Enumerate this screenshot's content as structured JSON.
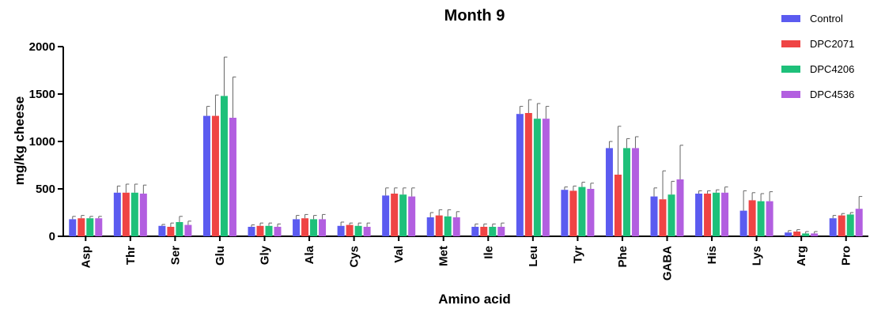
{
  "chart_data": {
    "type": "bar",
    "title": "Month 9",
    "xlabel": "Amino acid",
    "ylabel": "mg/kg cheese",
    "ylim": [
      0,
      2000
    ],
    "yticks": [
      "0",
      "500",
      "1000",
      "1500",
      "2000"
    ],
    "grid": false,
    "legend_position": "top-right",
    "error_bars": true,
    "categories": [
      "Asp",
      "Thr",
      "Ser",
      "Glu",
      "Gly",
      "Ala",
      "Cys",
      "Val",
      "Met",
      "Ile",
      "Leu",
      "Tyr",
      "Phe",
      "GABA",
      "His",
      "Lys",
      "Arg",
      "Pro"
    ],
    "series": [
      {
        "name": "Control",
        "color": "#5b5bf0",
        "values": [
          180,
          460,
          110,
          1270,
          100,
          180,
          110,
          430,
          200,
          100,
          1290,
          490,
          930,
          420,
          450,
          270,
          40,
          190
        ],
        "errors": [
          30,
          70,
          15,
          100,
          20,
          40,
          40,
          80,
          50,
          30,
          80,
          30,
          70,
          90,
          30,
          210,
          20,
          30
        ]
      },
      {
        "name": "DPC2071",
        "color": "#ef4444",
        "values": [
          190,
          460,
          100,
          1270,
          110,
          190,
          120,
          450,
          220,
          100,
          1300,
          480,
          650,
          390,
          450,
          380,
          50,
          220
        ],
        "errors": [
          30,
          90,
          40,
          220,
          30,
          40,
          20,
          60,
          60,
          30,
          140,
          50,
          510,
          300,
          30,
          80,
          20,
          20
        ]
      },
      {
        "name": "DPC4206",
        "color": "#1ec07a",
        "values": [
          190,
          460,
          150,
          1480,
          110,
          180,
          110,
          440,
          210,
          100,
          1240,
          520,
          930,
          440,
          460,
          370,
          30,
          230
        ],
        "errors": [
          20,
          90,
          60,
          410,
          30,
          40,
          30,
          70,
          70,
          30,
          160,
          50,
          100,
          140,
          30,
          80,
          20,
          20
        ]
      },
      {
        "name": "DPC4536",
        "color": "#b25fe0",
        "values": [
          190,
          450,
          120,
          1250,
          100,
          180,
          100,
          420,
          200,
          100,
          1240,
          500,
          930,
          600,
          460,
          370,
          30,
          290
        ],
        "errors": [
          20,
          90,
          40,
          430,
          30,
          50,
          40,
          90,
          60,
          40,
          130,
          60,
          120,
          360,
          60,
          100,
          20,
          130
        ]
      }
    ]
  }
}
